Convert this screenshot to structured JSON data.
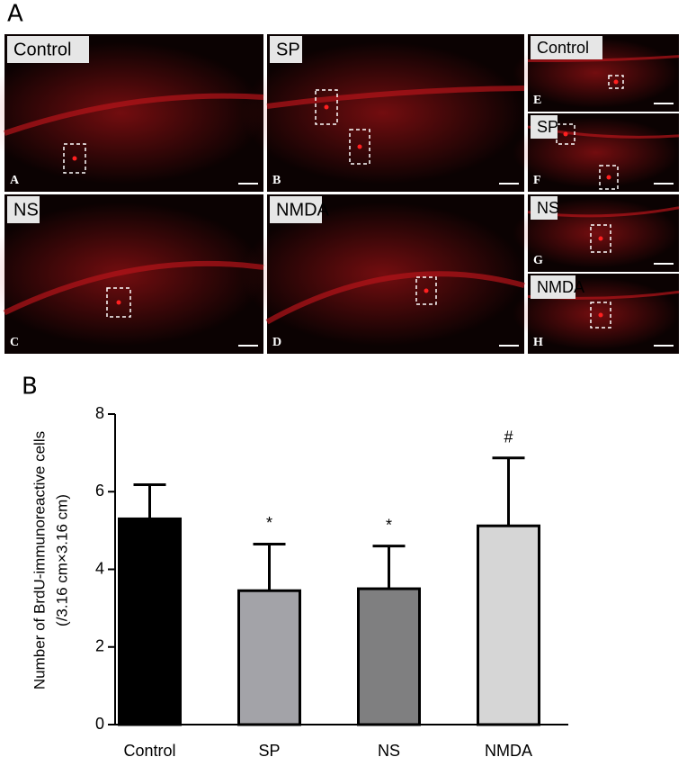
{
  "panel_a": {
    "label": "A",
    "images": [
      {
        "title": "Control",
        "letter": "A"
      },
      {
        "title": "SP",
        "letter": "B"
      },
      {
        "title": "NS",
        "letter": "C"
      },
      {
        "title": "NMDA",
        "letter": "D"
      },
      {
        "title": "Control",
        "letter": "E"
      },
      {
        "title": "SP",
        "letter": "F"
      },
      {
        "title": "NS",
        "letter": "G"
      },
      {
        "title": "NMDA",
        "letter": "H"
      }
    ]
  },
  "panel_b": {
    "label": "B"
  },
  "chart_data": {
    "type": "bar",
    "ylabel": [
      "Number of BrdU-immunoreactive cells",
      "(/3.16 cm×3.16 cm)"
    ],
    "categories": [
      "Control",
      "SP",
      "NS",
      "NMDA"
    ],
    "values": [
      5.3,
      3.45,
      3.5,
      5.12
    ],
    "errors": [
      0.88,
      1.2,
      1.1,
      1.75
    ],
    "annotations": [
      null,
      "*",
      "*",
      "#"
    ],
    "colors": [
      "#000000",
      "#a3a3a8",
      "#7f7f80",
      "#d6d6d6"
    ],
    "ylim": [
      0,
      8
    ],
    "yticks": [
      0,
      2,
      4,
      6,
      8
    ]
  }
}
